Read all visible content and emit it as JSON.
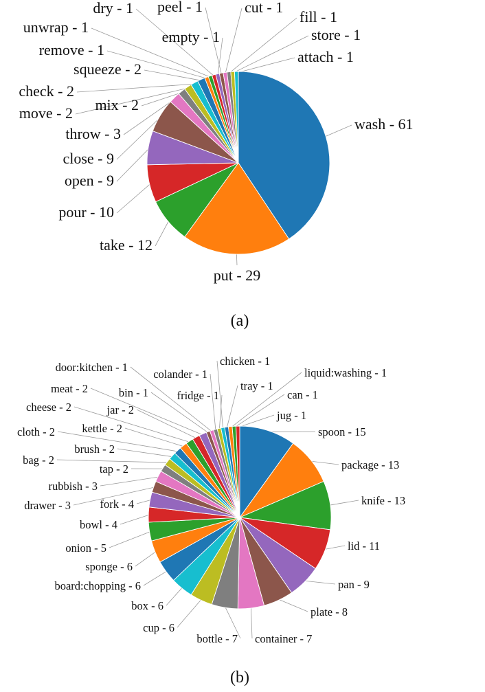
{
  "chart_data": [
    {
      "type": "pie",
      "caption": "(a)",
      "categories": [
        "wash",
        "put",
        "take",
        "pour",
        "open",
        "close",
        "throw",
        "mix",
        "move",
        "check",
        "squeeze",
        "remove",
        "unwrap",
        "dry",
        "empty",
        "peel",
        "cut",
        "fill",
        "store",
        "attach"
      ],
      "values": [
        61,
        29,
        12,
        10,
        9,
        9,
        3,
        2,
        2,
        2,
        2,
        1,
        1,
        1,
        1,
        1,
        1,
        1,
        1,
        1
      ],
      "colors": [
        "#1f77b4",
        "#ff7f0e",
        "#2ca02c",
        "#d62728",
        "#9467bd",
        "#8c564b",
        "#e377c2",
        "#7f7f7f",
        "#bcbd22",
        "#17becf",
        "#1f77b4",
        "#ff7f0e",
        "#2ca02c",
        "#d62728",
        "#9467bd",
        "#8c564b",
        "#e377c2",
        "#7f7f7f",
        "#bcbd22",
        "#17becf"
      ],
      "labels": [
        "wash - 61",
        "put - 29",
        "take - 12",
        "pour - 10",
        "open - 9",
        "close - 9",
        "throw - 3",
        "mix - 2",
        "move - 2",
        "check - 2",
        "squeeze - 2",
        "remove - 1",
        "unwrap - 1",
        "dry - 1",
        "empty - 1",
        "peel - 1",
        "cut - 1",
        "fill - 1",
        "store - 1",
        "attach - 1"
      ],
      "start": "12 o'clock",
      "direction": "clockwise"
    },
    {
      "type": "pie",
      "caption": "(b)",
      "categories": [
        "spoon",
        "package",
        "knife",
        "lid",
        "pan",
        "plate",
        "container",
        "bottle",
        "cup",
        "box",
        "board:chopping",
        "sponge",
        "onion",
        "bowl",
        "fork",
        "drawer",
        "rubbish",
        "tap",
        "bag",
        "brush",
        "cloth",
        "kettle",
        "cheese",
        "jar",
        "meat",
        "bin",
        "door:kitchen",
        "colander",
        "fridge",
        "chicken",
        "tray",
        "liquid:washing",
        "can",
        "jug"
      ],
      "values": [
        15,
        13,
        13,
        11,
        9,
        8,
        7,
        7,
        6,
        6,
        6,
        6,
        5,
        4,
        4,
        3,
        3,
        2,
        2,
        2,
        2,
        2,
        2,
        2,
        2,
        1,
        1,
        1,
        1,
        1,
        1,
        1,
        1,
        1
      ],
      "colors": [
        "#1f77b4",
        "#ff7f0e",
        "#2ca02c",
        "#d62728",
        "#9467bd",
        "#8c564b",
        "#e377c2",
        "#7f7f7f",
        "#bcbd22",
        "#17becf",
        "#1f77b4",
        "#ff7f0e",
        "#2ca02c",
        "#d62728",
        "#9467bd",
        "#8c564b",
        "#e377c2",
        "#7f7f7f",
        "#bcbd22",
        "#17becf",
        "#1f77b4",
        "#ff7f0e",
        "#2ca02c",
        "#d62728",
        "#9467bd",
        "#8c564b",
        "#e377c2",
        "#7f7f7f",
        "#bcbd22",
        "#17becf",
        "#1f77b4",
        "#ff7f0e",
        "#2ca02c",
        "#d62728"
      ],
      "labels": [
        "spoon - 15",
        "package - 13",
        "knife - 13",
        "lid - 11",
        "pan - 9",
        "plate - 8",
        "container - 7",
        "bottle - 7",
        "cup - 6",
        "box - 6",
        "board:chopping - 6",
        "sponge - 6",
        "onion - 5",
        "bowl - 4",
        "fork - 4",
        "drawer - 3",
        "rubbish - 3",
        "tap  - 2",
        "bag - 2",
        "brush - 2",
        "cloth - 2",
        "kettle - 2",
        "cheese - 2",
        "jar - 2",
        "meat - 2",
        "bin - 1",
        "door:kitchen - 1",
        "colander - 1",
        "fridge - 1",
        "chicken - 1",
        "tray - 1",
        "liquid:washing - 1",
        "can - 1",
        "jug - 1"
      ],
      "start": "12 o'clock",
      "direction": "clockwise"
    }
  ]
}
